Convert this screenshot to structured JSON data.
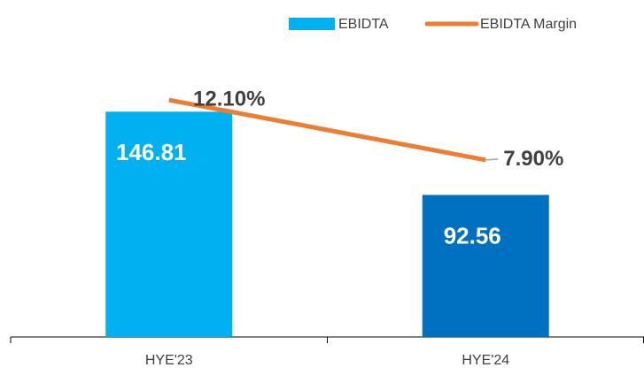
{
  "chart_data": {
    "type": "bar_line",
    "categories": [
      "HYE'23",
      "HYE'24"
    ],
    "series": [
      {
        "name": "EBIDTA",
        "type": "bar",
        "color": "#00b0f0",
        "point_colors": [
          "#00b0f0",
          "#0070c0"
        ],
        "values": [
          146.81,
          92.56
        ]
      },
      {
        "name": "EBIDTA Margin",
        "type": "line",
        "axis": "y2",
        "color": "#ed7d31",
        "values": [
          12.1,
          7.9
        ],
        "value_labels": [
          "12.10%",
          "7.90%"
        ]
      }
    ],
    "ylim": [
      0,
      200
    ],
    "y2lim": [
      -4.5,
      17
    ],
    "legend": "top-right"
  }
}
